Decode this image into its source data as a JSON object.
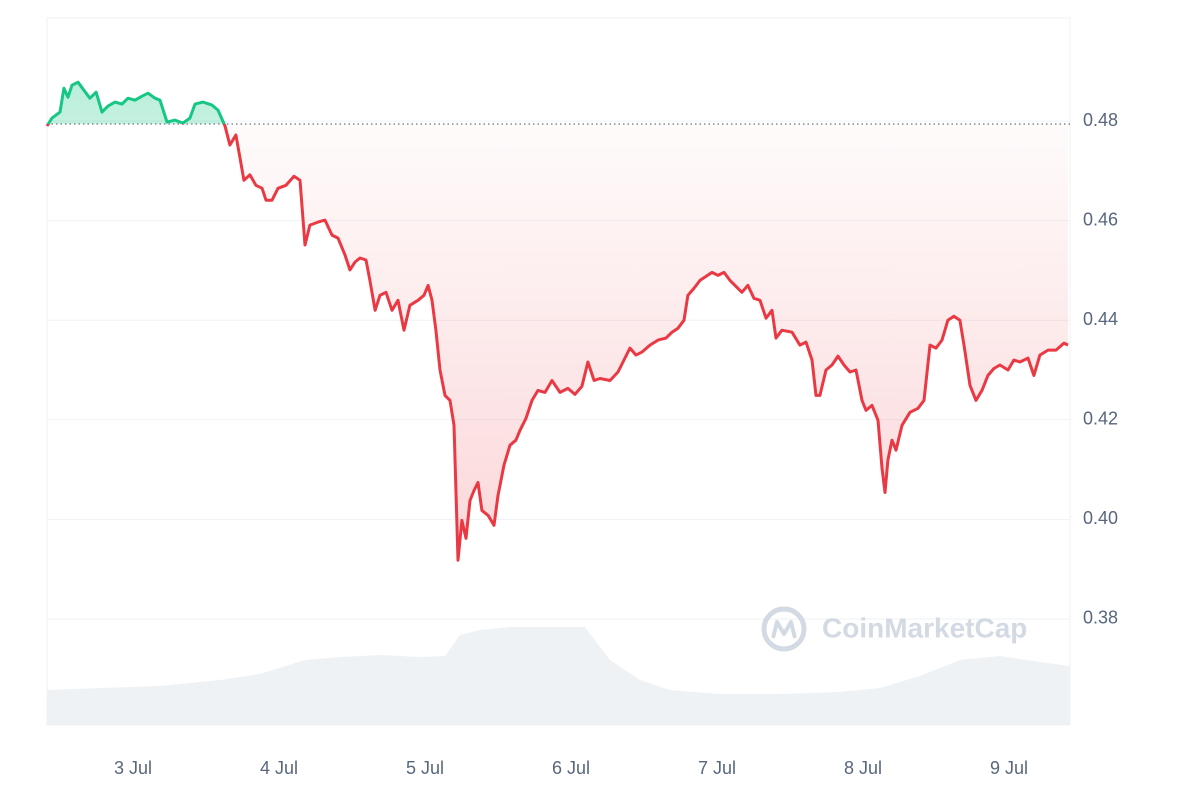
{
  "chart_data": {
    "type": "line",
    "xlim": [
      2.411,
      9.418
    ],
    "ylim": [
      0.3587,
      0.5007
    ],
    "y2lim": [
      0,
      100
    ],
    "xticks": [
      {
        "value": 3,
        "label": "3 Jul"
      },
      {
        "value": 4,
        "label": "4 Jul"
      },
      {
        "value": 5,
        "label": "5 Jul"
      },
      {
        "value": 6,
        "label": "6 Jul"
      },
      {
        "value": 7,
        "label": "7 Jul"
      },
      {
        "value": 8,
        "label": "8 Jul"
      },
      {
        "value": 9,
        "label": "9 Jul"
      }
    ],
    "yticks": [
      0.38,
      {
        "value": 0.4,
        "label": "0.40"
      },
      0.42,
      0.44,
      0.46,
      0.48
    ],
    "grid": true,
    "baseline": 0.4794,
    "watermark": "CoinMarketCap",
    "price": {
      "color_up": "#16c784",
      "color_down": "#ea3943",
      "x": [
        2.411,
        2.445,
        2.5,
        2.527,
        2.555,
        2.582,
        2.623,
        2.664,
        2.705,
        2.747,
        2.788,
        2.829,
        2.877,
        2.925,
        2.966,
        3.014,
        3.062,
        3.103,
        3.151,
        3.185,
        3.233,
        3.288,
        3.342,
        3.39,
        3.425,
        3.479,
        3.541,
        3.582,
        3.63,
        3.664,
        3.705,
        3.733,
        3.76,
        3.801,
        3.842,
        3.884,
        3.911,
        3.952,
        3.993,
        4.048,
        4.103,
        4.144,
        4.178,
        4.212,
        4.267,
        4.315,
        4.363,
        4.404,
        4.452,
        4.486,
        4.521,
        4.555,
        4.596,
        4.623,
        4.658,
        4.692,
        4.733,
        4.774,
        4.815,
        4.856,
        4.897,
        4.952,
        4.993,
        5.021,
        5.048,
        5.075,
        5.103,
        5.137,
        5.171,
        5.199,
        5.226,
        5.253,
        5.281,
        5.308,
        5.336,
        5.363,
        5.39,
        5.432,
        5.473,
        5.5,
        5.541,
        5.582,
        5.623,
        5.651,
        5.692,
        5.733,
        5.774,
        5.822,
        5.87,
        5.925,
        5.979,
        6.027,
        6.075,
        6.116,
        6.158,
        6.199,
        6.267,
        6.322,
        6.363,
        6.404,
        6.445,
        6.486,
        6.541,
        6.596,
        6.651,
        6.692,
        6.733,
        6.774,
        6.801,
        6.842,
        6.884,
        6.925,
        6.966,
        7.007,
        7.048,
        7.089,
        7.13,
        7.171,
        7.212,
        7.253,
        7.295,
        7.336,
        7.377,
        7.404,
        7.445,
        7.514,
        7.568,
        7.61,
        7.651,
        7.678,
        7.705,
        7.747,
        7.788,
        7.829,
        7.87,
        7.911,
        7.952,
        7.993,
        8.021,
        8.062,
        8.103,
        8.13,
        8.151,
        8.171,
        8.199,
        8.226,
        8.267,
        8.322,
        8.377,
        8.418,
        8.459,
        8.5,
        8.541,
        8.582,
        8.623,
        8.664,
        8.692,
        8.733,
        8.774,
        8.815,
        8.856,
        8.897,
        8.938,
        8.993,
        9.034,
        9.075,
        9.13,
        9.171,
        9.212,
        9.267,
        9.322,
        9.377,
        9.404
      ],
      "values": [
        0.479,
        0.4806,
        0.4818,
        0.4866,
        0.4848,
        0.4872,
        0.4878,
        0.4862,
        0.4846,
        0.4858,
        0.4818,
        0.483,
        0.4838,
        0.4834,
        0.4846,
        0.4842,
        0.485,
        0.4856,
        0.4846,
        0.4842,
        0.4798,
        0.4802,
        0.4796,
        0.4806,
        0.4834,
        0.4838,
        0.4832,
        0.4822,
        0.479,
        0.4752,
        0.4772,
        0.4726,
        0.4681,
        0.4692,
        0.4671,
        0.4665,
        0.4641,
        0.4641,
        0.4665,
        0.4671,
        0.4689,
        0.4681,
        0.4551,
        0.4591,
        0.4597,
        0.4601,
        0.4571,
        0.4565,
        0.4531,
        0.4501,
        0.4517,
        0.4525,
        0.4521,
        0.448,
        0.442,
        0.445,
        0.4456,
        0.442,
        0.444,
        0.438,
        0.443,
        0.444,
        0.445,
        0.447,
        0.444,
        0.438,
        0.43,
        0.4249,
        0.4239,
        0.4189,
        0.3918,
        0.3998,
        0.3962,
        0.4038,
        0.4058,
        0.4074,
        0.4018,
        0.4008,
        0.3988,
        0.4048,
        0.4109,
        0.4149,
        0.4159,
        0.4179,
        0.4203,
        0.4239,
        0.4259,
        0.4255,
        0.4279,
        0.4255,
        0.4263,
        0.4251,
        0.4267,
        0.4316,
        0.4279,
        0.4283,
        0.4279,
        0.4296,
        0.432,
        0.4344,
        0.433,
        0.4336,
        0.435,
        0.436,
        0.4364,
        0.4376,
        0.4384,
        0.44,
        0.445,
        0.4464,
        0.448,
        0.4488,
        0.4496,
        0.449,
        0.4496,
        0.448,
        0.4468,
        0.4456,
        0.447,
        0.4444,
        0.444,
        0.4404,
        0.442,
        0.4364,
        0.438,
        0.4376,
        0.435,
        0.4356,
        0.432,
        0.4249,
        0.4249,
        0.43,
        0.431,
        0.4328,
        0.431,
        0.4296,
        0.43,
        0.4239,
        0.4219,
        0.4229,
        0.4199,
        0.4103,
        0.4054,
        0.4119,
        0.4159,
        0.4139,
        0.4189,
        0.4215,
        0.4223,
        0.4239,
        0.435,
        0.4344,
        0.436,
        0.44,
        0.4408,
        0.44,
        0.435,
        0.4269,
        0.4239,
        0.4259,
        0.4289,
        0.4303,
        0.431,
        0.43,
        0.432,
        0.4316,
        0.4324,
        0.4289,
        0.433,
        0.434,
        0.434,
        0.4354,
        0.435
      ]
    },
    "volume": {
      "color": "#eff2f5",
      "x": [
        2.411,
        2.774,
        3.185,
        3.596,
        3.87,
        4.178,
        4.418,
        4.692,
        4.966,
        5.137,
        5.24,
        5.377,
        5.582,
        5.788,
        6.096,
        6.267,
        6.473,
        6.678,
        7.021,
        7.432,
        7.842,
        8.116,
        8.39,
        8.664,
        8.938,
        9.212,
        9.418
      ],
      "values": [
        4.95,
        5.23,
        5.52,
        6.36,
        7.21,
        9.19,
        9.62,
        9.9,
        9.62,
        9.76,
        12.73,
        13.44,
        13.86,
        13.86,
        13.86,
        9.19,
        6.36,
        4.95,
        4.38,
        4.38,
        4.67,
        5.23,
        6.93,
        9.19,
        9.76,
        8.91,
        8.35
      ]
    }
  }
}
